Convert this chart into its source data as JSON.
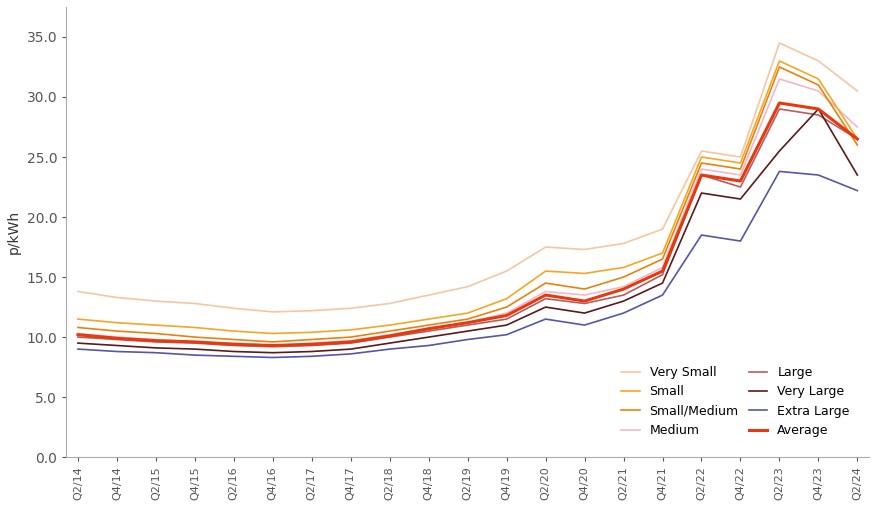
{
  "ylabel": "p/kWh",
  "ylim": [
    0.0,
    37.5
  ],
  "yticks": [
    0.0,
    5.0,
    10.0,
    15.0,
    20.0,
    25.0,
    30.0,
    35.0
  ],
  "x_labels": [
    "Q2/14",
    "Q4/14",
    "Q2/15",
    "Q4/15",
    "Q2/16",
    "Q4/16",
    "Q2/17",
    "Q4/17",
    "Q2/18",
    "Q4/18",
    "Q2/19",
    "Q4/19",
    "Q2/20",
    "Q4/20",
    "Q2/21",
    "Q4/21",
    "Q2/22",
    "Q4/22",
    "Q2/23",
    "Q4/23",
    "Q2/24"
  ],
  "series": {
    "Very Small": {
      "color": "#f5c6a0",
      "linewidth": 1.2,
      "zorder": 2,
      "values": [
        13.8,
        13.3,
        13.0,
        12.8,
        12.4,
        12.1,
        12.2,
        12.4,
        12.8,
        13.5,
        14.2,
        15.5,
        17.5,
        17.3,
        17.8,
        19.0,
        25.5,
        25.0,
        34.5,
        33.0,
        30.5
      ]
    },
    "Small": {
      "color": "#f5a623",
      "linewidth": 1.2,
      "zorder": 3,
      "values": [
        11.5,
        11.2,
        11.0,
        10.8,
        10.5,
        10.3,
        10.4,
        10.6,
        11.0,
        11.5,
        12.0,
        13.2,
        15.5,
        15.3,
        15.8,
        17.0,
        25.0,
        24.5,
        33.0,
        31.5,
        26.5
      ]
    },
    "Small/Medium": {
      "color": "#e8820c",
      "linewidth": 1.2,
      "zorder": 3,
      "values": [
        10.8,
        10.5,
        10.3,
        10.0,
        9.8,
        9.6,
        9.8,
        10.0,
        10.5,
        11.0,
        11.5,
        12.5,
        14.5,
        14.0,
        15.0,
        16.5,
        24.5,
        24.0,
        32.5,
        31.0,
        26.0
      ]
    },
    "Medium": {
      "color": "#f0b8c8",
      "linewidth": 1.2,
      "zorder": 2,
      "values": [
        10.3,
        10.0,
        9.8,
        9.6,
        9.5,
        9.3,
        9.5,
        9.7,
        10.2,
        10.7,
        11.2,
        12.0,
        13.8,
        13.5,
        14.2,
        15.8,
        24.0,
        23.5,
        31.5,
        30.5,
        27.5
      ]
    },
    "Large": {
      "color": "#b85c5c",
      "linewidth": 1.2,
      "zorder": 3,
      "values": [
        10.0,
        9.8,
        9.6,
        9.5,
        9.3,
        9.2,
        9.3,
        9.5,
        10.0,
        10.5,
        11.0,
        11.5,
        13.2,
        12.8,
        13.5,
        15.2,
        23.5,
        22.5,
        29.0,
        28.5,
        26.5
      ]
    },
    "Very Large": {
      "color": "#5c1a1a",
      "linewidth": 1.2,
      "zorder": 3,
      "values": [
        9.5,
        9.3,
        9.1,
        9.0,
        8.8,
        8.7,
        8.8,
        9.0,
        9.5,
        10.0,
        10.5,
        11.0,
        12.5,
        12.0,
        13.0,
        14.5,
        22.0,
        21.5,
        25.5,
        29.0,
        23.5
      ]
    },
    "Extra Large": {
      "color": "#5555aa",
      "linewidth": 1.2,
      "zorder": 3,
      "values": [
        9.0,
        8.8,
        8.7,
        8.5,
        8.4,
        8.3,
        8.4,
        8.6,
        9.0,
        9.3,
        9.8,
        10.2,
        11.5,
        11.0,
        12.0,
        13.5,
        18.5,
        18.0,
        23.8,
        23.5,
        22.2
      ]
    },
    "Average": {
      "color": "#e8390e",
      "linewidth": 2.2,
      "zorder": 5,
      "values": [
        10.2,
        9.9,
        9.7,
        9.6,
        9.4,
        9.3,
        9.4,
        9.6,
        10.1,
        10.7,
        11.2,
        11.8,
        13.5,
        13.0,
        14.0,
        15.5,
        23.5,
        23.0,
        29.5,
        29.0,
        26.5
      ]
    }
  },
  "background_color": "#ffffff"
}
